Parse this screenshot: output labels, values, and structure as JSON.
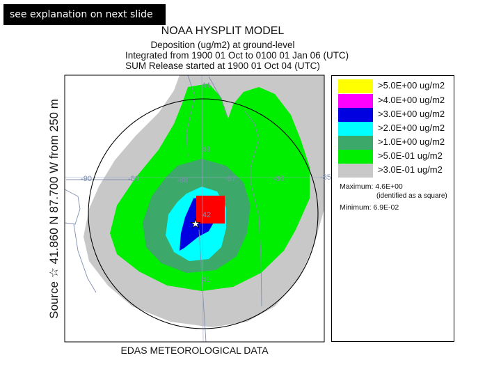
{
  "banner": "see explanation on next slide",
  "title": {
    "line1": "NOAA HYSPLIT MODEL",
    "line2": "Deposition  (ug/m2) at ground-level",
    "line3": "Integrated from 1900 01 Oct to 0100 01 Jan 06 (UTC)",
    "line4": "SUM  Release started at 1900 01 Oct 04 (UTC)"
  },
  "side_label": "Source ☆ 41.860  N  87.700  W    from   250 m",
  "footer": "EDAS METEOROLOGICAL DATA",
  "map": {
    "lon_labels": [
      "-90",
      "-89",
      "-88",
      "-87",
      "-86",
      "-85"
    ],
    "lat_labels": [
      "44",
      "43",
      "42",
      "41"
    ],
    "source_marker": "★"
  },
  "legend": {
    "items": [
      {
        "label": ">5.0E+00 ug/m2",
        "color": "#ffff00"
      },
      {
        "label": ">4.0E+00 ug/m2",
        "color": "#ff00ff"
      },
      {
        "label": ">3.0E+00 ug/m2",
        "color": "#0000e0"
      },
      {
        "label": ">2.0E+00 ug/m2",
        "color": "#00ffff"
      },
      {
        "label": ">1.0E+00 ug/m2",
        "color": "#3ca86a"
      },
      {
        "label": ">5.0E-01 ug/m2",
        "color": "#00ee00"
      },
      {
        "label": ">3.0E-01 ug/m2",
        "color": "#c8c8c8"
      }
    ],
    "maximum_label": "Maximum:",
    "maximum_value": "4.6E+00",
    "maximum_note": "(identified as a square)",
    "minimum_label": "Minimum:",
    "minimum_value": "6.9E-02",
    "maximum_marker_color": "#ff0000"
  }
}
